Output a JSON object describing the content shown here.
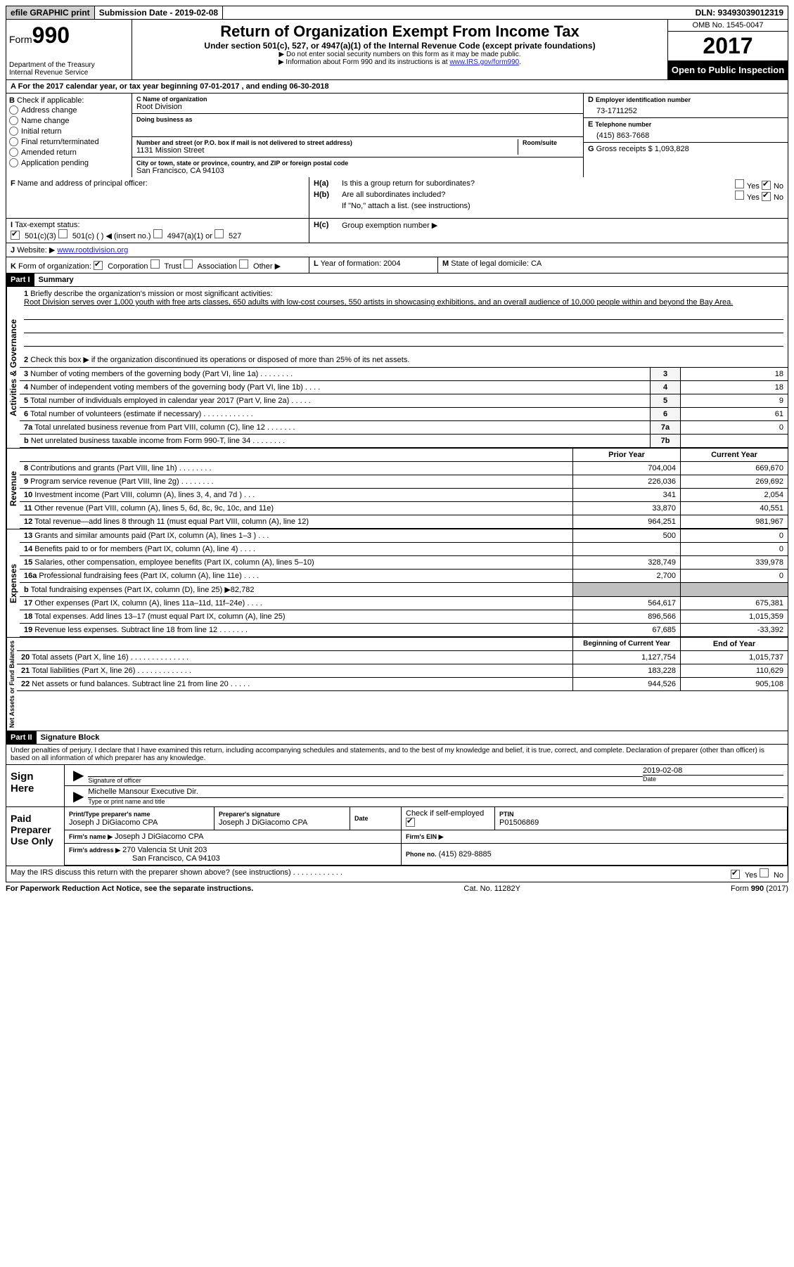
{
  "topbar": {
    "efile": "efile GRAPHIC print",
    "submission": "Submission Date - 2019-02-08",
    "dln": "DLN: 93493039012319"
  },
  "header": {
    "form_word": "Form",
    "form_num": "990",
    "dept": "Department of the Treasury",
    "irs": "Internal Revenue Service",
    "title": "Return of Organization Exempt From Income Tax",
    "subtitle": "Under section 501(c), 527, or 4947(a)(1) of the Internal Revenue Code (except private foundations)",
    "note1": "▶ Do not enter social security numbers on this form as it may be made public.",
    "note2_a": "▶ Information about Form 990 and its instructions is at ",
    "note2_link": "www.IRS.gov/form990",
    "omb": "OMB No. 1545-0047",
    "year": "2017",
    "open": "Open to Public Inspection"
  },
  "A": {
    "text": "For the 2017 calendar year, or tax year beginning 07-01-2017   , and ending 06-30-2018"
  },
  "B": {
    "label": "Check if applicable:",
    "items": [
      "Address change",
      "Name change",
      "Initial return",
      "Final return/terminated",
      "Amended return",
      "Application pending"
    ]
  },
  "C": {
    "name_label": "Name of organization",
    "name": "Root Division",
    "dba_label": "Doing business as",
    "street_label": "Number and street (or P.O. box if mail is not delivered to street address)",
    "room_label": "Room/suite",
    "street": "1131 Mission Street",
    "city_label": "City or town, state or province, country, and ZIP or foreign postal code",
    "city": "San Francisco, CA  94103"
  },
  "D": {
    "label": "Employer identification number",
    "value": "73-1711252"
  },
  "E": {
    "label": "Telephone number",
    "value": "(415) 863-7668"
  },
  "G": {
    "label": "Gross receipts $",
    "value": "1,093,828"
  },
  "F": {
    "label": "Name and address of principal officer:"
  },
  "H": {
    "a": "Is this a group return for subordinates?",
    "b": "Are all subordinates included?",
    "bnote": "If \"No,\" attach a list. (see instructions)",
    "c": "Group exemption number ▶",
    "yes": "Yes",
    "no": "No"
  },
  "I": {
    "label": "Tax-exempt status:",
    "o1": "501(c)(3)",
    "o2": "501(c) (   ) ◀ (insert no.)",
    "o3": "4947(a)(1) or",
    "o4": "527"
  },
  "J": {
    "label": "Website: ▶",
    "value": "www.rootdivision.org"
  },
  "K": {
    "label": "Form of organization:",
    "o1": "Corporation",
    "o2": "Trust",
    "o3": "Association",
    "o4": "Other ▶"
  },
  "L": {
    "label": "Year of formation:",
    "value": "2004"
  },
  "M": {
    "label": "State of legal domicile:",
    "value": "CA"
  },
  "partI": {
    "hdr": "Part I",
    "title": "Summary",
    "side_ag": "Activities & Governance",
    "side_rev": "Revenue",
    "side_exp": "Expenses",
    "side_net": "Net Assets or Fund Balances",
    "l1_label": "Briefly describe the organization's mission or most significant activities:",
    "l1_text": "Root Division serves over 1,000 youth with free arts classes, 650 adults with low-cost courses, 550 artists in showcasing exhibitions, and an overall audience of 10,000 people within and beyond the Bay Area.",
    "l2": "Check this box ▶      if the organization discontinued its operations or disposed of more than 25% of its net assets.",
    "lines_ag": [
      {
        "n": "3",
        "t": "Number of voting members of the governing body (Part VI, line 1a)  .   .   .   .   .   .   .   .",
        "box": "3",
        "v": "18"
      },
      {
        "n": "4",
        "t": "Number of independent voting members of the governing body (Part VI, line 1b)   .   .   .   .",
        "box": "4",
        "v": "18"
      },
      {
        "n": "5",
        "t": "Total number of individuals employed in calendar year 2017 (Part V, line 2a)   .   .   .   .   .",
        "box": "5",
        "v": "9"
      },
      {
        "n": "6",
        "t": "Total number of volunteers (estimate if necessary)   .   .   .   .   .   .   .   .   .   .   .   .",
        "box": "6",
        "v": "61"
      },
      {
        "n": "7a",
        "t": "Total unrelated business revenue from Part VIII, column (C), line 12   .   .   .   .   .   .   .",
        "box": "7a",
        "v": "0"
      },
      {
        "n": "b",
        "t": "Net unrelated business taxable income from Form 990-T, line 34   .   .   .   .   .   .   .   .",
        "box": "7b",
        "v": ""
      }
    ],
    "col_prior": "Prior Year",
    "col_current": "Current Year",
    "lines_rev": [
      {
        "n": "8",
        "t": "Contributions and grants (Part VIII, line 1h)   .   .   .   .   .   .   .   .",
        "p": "704,004",
        "c": "669,670"
      },
      {
        "n": "9",
        "t": "Program service revenue (Part VIII, line 2g)   .   .   .   .   .   .   .   .",
        "p": "226,036",
        "c": "269,692"
      },
      {
        "n": "10",
        "t": "Investment income (Part VIII, column (A), lines 3, 4, and 7d )   .   .   .",
        "p": "341",
        "c": "2,054"
      },
      {
        "n": "11",
        "t": "Other revenue (Part VIII, column (A), lines 5, 6d, 8c, 9c, 10c, and 11e)",
        "p": "33,870",
        "c": "40,551"
      },
      {
        "n": "12",
        "t": "Total revenue—add lines 8 through 11 (must equal Part VIII, column (A), line 12)",
        "p": "964,251",
        "c": "981,967"
      }
    ],
    "lines_exp": [
      {
        "n": "13",
        "t": "Grants and similar amounts paid (Part IX, column (A), lines 1–3 )  .   .   .",
        "p": "500",
        "c": "0"
      },
      {
        "n": "14",
        "t": "Benefits paid to or for members (Part IX, column (A), line 4)   .   .   .   .",
        "p": "",
        "c": "0"
      },
      {
        "n": "15",
        "t": "Salaries, other compensation, employee benefits (Part IX, column (A), lines 5–10)",
        "p": "328,749",
        "c": "339,978"
      },
      {
        "n": "16a",
        "t": "Professional fundraising fees (Part IX, column (A), line 11e)   .   .   .   .",
        "p": "2,700",
        "c": "0"
      },
      {
        "n": "b",
        "t": "Total fundraising expenses (Part IX, column (D), line 25) ▶82,782",
        "p": "SHADE",
        "c": "SHADE"
      },
      {
        "n": "17",
        "t": "Other expenses (Part IX, column (A), lines 11a–11d, 11f–24e)   .   .   .   .",
        "p": "564,617",
        "c": "675,381"
      },
      {
        "n": "18",
        "t": "Total expenses. Add lines 13–17 (must equal Part IX, column (A), line 25)",
        "p": "896,566",
        "c": "1,015,359"
      },
      {
        "n": "19",
        "t": "Revenue less expenses. Subtract line 18 from line 12  .   .   .   .   .   .   .",
        "p": "67,685",
        "c": "-33,392"
      }
    ],
    "col_boy": "Beginning of Current Year",
    "col_eoy": "End of Year",
    "lines_net": [
      {
        "n": "20",
        "t": "Total assets (Part X, line 16)  .   .   .   .   .   .   .   .   .   .   .   .   .   .",
        "p": "1,127,754",
        "c": "1,015,737"
      },
      {
        "n": "21",
        "t": "Total liabilities (Part X, line 26)   .   .   .   .   .   .   .   .   .   .   .   .   .",
        "p": "183,228",
        "c": "110,629"
      },
      {
        "n": "22",
        "t": "Net assets or fund balances. Subtract line 21 from line 20   .   .   .   .   .",
        "p": "944,526",
        "c": "905,108"
      }
    ]
  },
  "partII": {
    "hdr": "Part II",
    "title": "Signature Block",
    "penalty": "Under penalties of perjury, I declare that I have examined this return, including accompanying schedules and statements, and to the best of my knowledge and belief, it is true, correct, and complete. Declaration of preparer (other than officer) is based on all information of which preparer has any knowledge.",
    "sign_here": "Sign Here",
    "sig_officer": "Signature of officer",
    "date": "Date",
    "date_val": "2019-02-08",
    "officer_name": "Michelle Mansour Executive Dir.",
    "type_name": "Type or print name and title",
    "paid": "Paid Preparer Use Only",
    "prep_name_label": "Print/Type preparer's name",
    "prep_name": "Joseph J DiGiacomo CPA",
    "prep_sig_label": "Preparer's signature",
    "prep_sig": "Joseph J DiGiacomo CPA",
    "date_label": "Date",
    "check_self": "Check        if self-employed",
    "ptin_label": "PTIN",
    "ptin": "P01506869",
    "firm_name_label": "Firm's name   ▶",
    "firm_name": "Joseph J DiGiacomo CPA",
    "firm_ein_label": "Firm's EIN ▶",
    "firm_addr_label": "Firm's address ▶",
    "firm_addr": "270 Valencia St Unit 203",
    "firm_city": "San Francisco, CA  94103",
    "phone_label": "Phone no.",
    "phone": "(415) 829-8885",
    "discuss": "May the IRS discuss this return with the preparer shown above? (see instructions)    .     .     .     .     .     .     .     .     .     .     .     .",
    "yes": "Yes",
    "no": "No"
  },
  "footer": {
    "pra": "For Paperwork Reduction Act Notice, see the separate instructions.",
    "cat": "Cat. No. 11282Y",
    "form": "Form 990 (2017)"
  }
}
